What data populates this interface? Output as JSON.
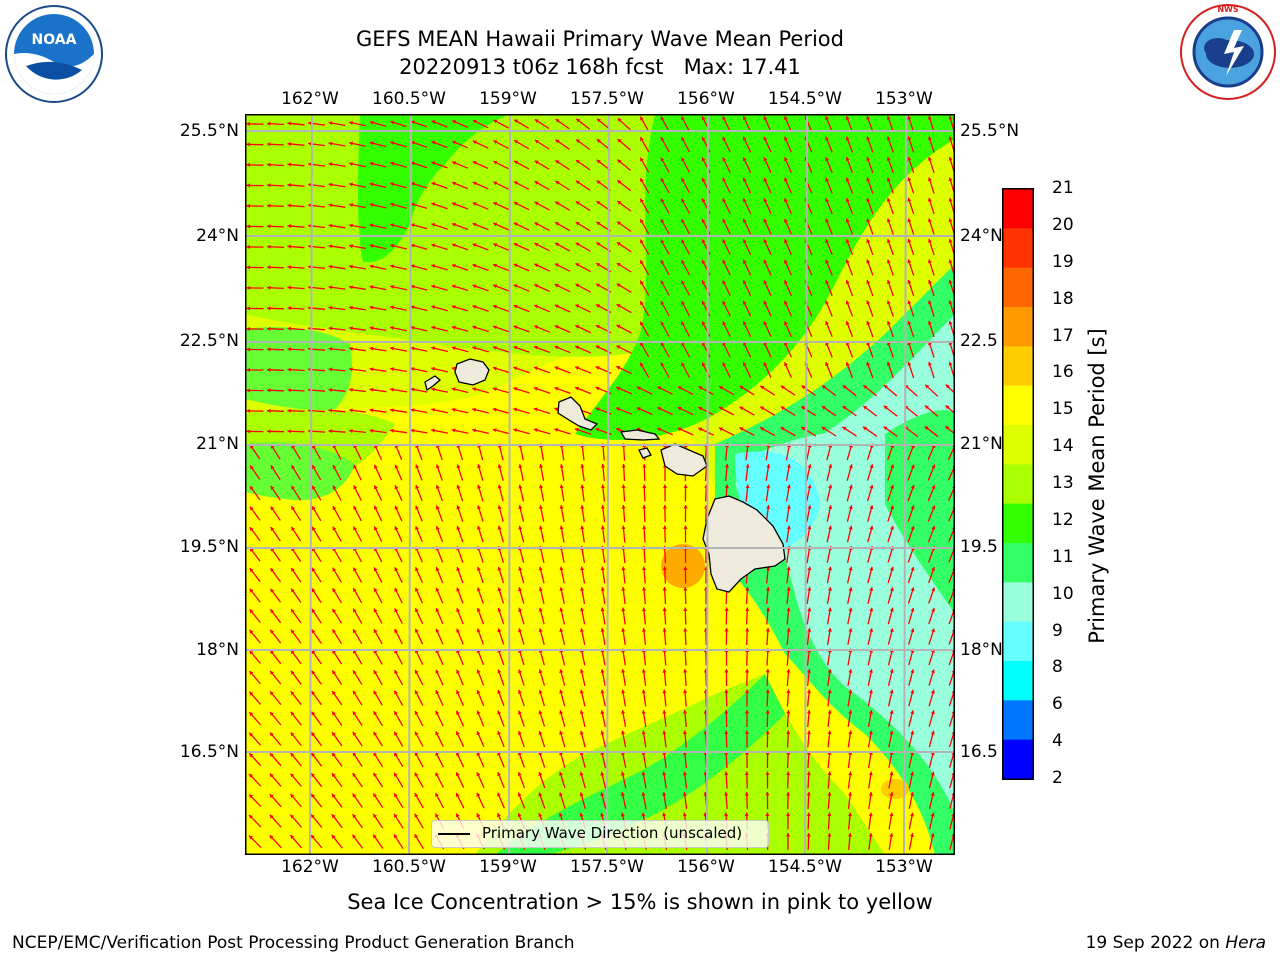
{
  "title": {
    "line1": "GEFS MEAN Hawaii Primary Wave Mean Period",
    "line2": "20220913 t06z 168h fcst   Max: 17.41"
  },
  "map": {
    "lon_labels": [
      "162°W",
      "160.5°W",
      "159°W",
      "157.5°W",
      "156°W",
      "154.5°W",
      "153°W"
    ],
    "lat_labels_left": [
      "25.5°N",
      "24°N",
      "22.5°N",
      "21°N",
      "19.5°N",
      "18°N",
      "16.5°N"
    ],
    "lat_labels_right": [
      "25.5°N",
      "24°N",
      "22.5",
      "21°N",
      "19.5",
      "18°N",
      "16.5"
    ],
    "legend_label": "Primary Wave Direction (unscaled)",
    "colors": {
      "arrow": "#ff0000",
      "land": "#efebdc",
      "grid": "#b4b4b4"
    }
  },
  "colorbar": {
    "title": "Primary Wave Mean Period [s]",
    "ticks": [
      "21",
      "20",
      "19",
      "18",
      "17",
      "16",
      "15",
      "14",
      "13",
      "12",
      "11",
      "10",
      "9",
      "8",
      "6",
      "4",
      "2"
    ],
    "colors": [
      "#ff0000",
      "#ff3300",
      "#ff6600",
      "#ff9900",
      "#ffcc00",
      "#ffff00",
      "#ddff00",
      "#aaff00",
      "#33ff00",
      "#33ff66",
      "#99ffdd",
      "#66ffff",
      "#00ffff",
      "#0077ff",
      "#0000ff"
    ]
  },
  "note": "Sea Ice Concentration > 15% is shown in pink to yellow",
  "footer": {
    "left": "NCEP/EMC/Verification Post Processing Product Generation Branch",
    "right_prefix": "19 Sep 2022 on ",
    "right_host": "Hera"
  },
  "logos": {
    "noaa": "NOAA",
    "nws": "NATIONAL WEATHER SERVICE"
  }
}
